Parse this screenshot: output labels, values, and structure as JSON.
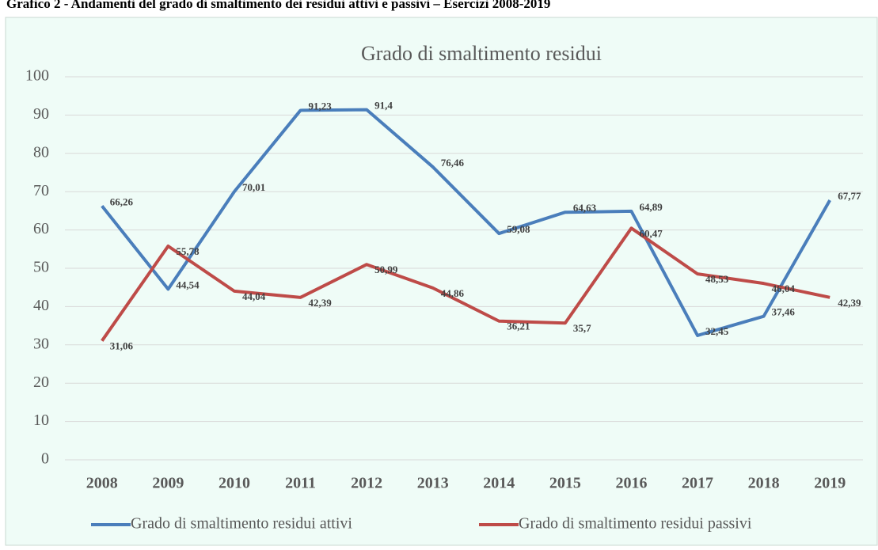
{
  "chart_data": {
    "type": "line",
    "heading": "Grafico 2 - Andamenti del grado di smaltimento dei residui attivi e passivi – Esercizi 2008-2019",
    "title": "Grado di smaltimento residui",
    "categories": [
      "2008",
      "2009",
      "2010",
      "2011",
      "2012",
      "2013",
      "2014",
      "2015",
      "2016",
      "2017",
      "2018",
      "2019"
    ],
    "series": [
      {
        "name": "Grado di smaltimento residui attivi",
        "color": "#4a7ebb",
        "values": [
          66.26,
          44.54,
          70.01,
          91.23,
          91.4,
          76.46,
          59.08,
          64.63,
          64.89,
          32.45,
          37.46,
          67.77
        ],
        "value_labels": [
          "66,26",
          "44,54",
          "70,01",
          "91,23",
          "91,4",
          "76,46",
          "59,08",
          "64,63",
          "64,89",
          "32,45",
          "37,46",
          "67,77"
        ]
      },
      {
        "name": "Grado di smaltimento residui passivi",
        "color": "#be4b48",
        "values": [
          31.06,
          55.78,
          44.04,
          42.39,
          50.99,
          44.86,
          36.21,
          35.7,
          60.47,
          48.53,
          46.04,
          42.39
        ],
        "value_labels": [
          "31,06",
          "55,78",
          "44,04",
          "42,39",
          "50,99",
          "44,86",
          "36,21",
          "35,7",
          "60,47",
          "48,53",
          "46,04",
          "42,39"
        ]
      }
    ],
    "ylim": [
      0,
      100
    ],
    "yticks": [
      0,
      10,
      20,
      30,
      40,
      50,
      60,
      70,
      80,
      90,
      100
    ],
    "grid": true
  }
}
